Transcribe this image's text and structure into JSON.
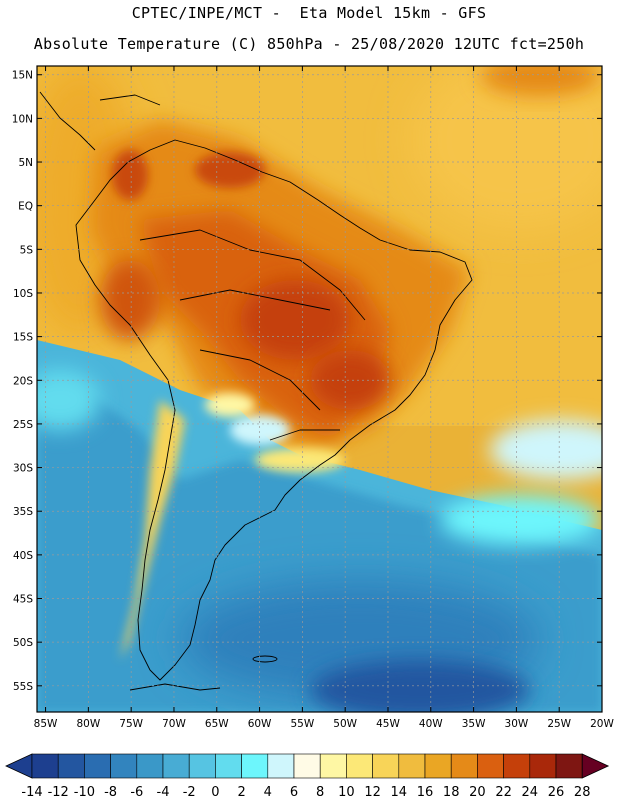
{
  "header": {
    "line1": "CPTEC/INPE/MCT -  Eta Model 15km - GFS",
    "line2": "Absolute Temperature (C) 850hPa - 25/08/2020 12UTC fct=250h"
  },
  "map": {
    "region": "south-america",
    "lat_labels": [
      "15N",
      "10N",
      "5N",
      "EQ",
      "5S",
      "10S",
      "15S",
      "20S",
      "25S",
      "30S",
      "35S",
      "40S",
      "45S",
      "50S",
      "55S"
    ],
    "lon_labels": [
      "85W",
      "80W",
      "75W",
      "70W",
      "65W",
      "60W",
      "55W",
      "50W",
      "45W",
      "40W",
      "35W",
      "30W",
      "25W",
      "20W"
    ],
    "lat_range": [
      -58,
      16
    ],
    "lon_range": [
      -86,
      -20
    ]
  },
  "colorbar": {
    "labels": [
      "-14",
      "-12",
      "-10",
      "-8",
      "-6",
      "-4",
      "-2",
      "0",
      "2",
      "4",
      "6",
      "8",
      "10",
      "12",
      "14",
      "16",
      "18",
      "20",
      "22",
      "24",
      "26",
      "28"
    ],
    "colors": [
      "#1d3f8f",
      "#2356a0",
      "#2a6db1",
      "#3284be",
      "#3a98c8",
      "#48acd4",
      "#56c4e2",
      "#62dcee",
      "#6df6fc",
      "#cff6fc",
      "#fffbe6",
      "#fef7a4",
      "#fce877",
      "#f8d458",
      "#f0bc3e",
      "#eaa624",
      "#e58a18",
      "#da6010",
      "#c5400a",
      "#a9280a",
      "#7e1612",
      "#660022"
    ]
  }
}
